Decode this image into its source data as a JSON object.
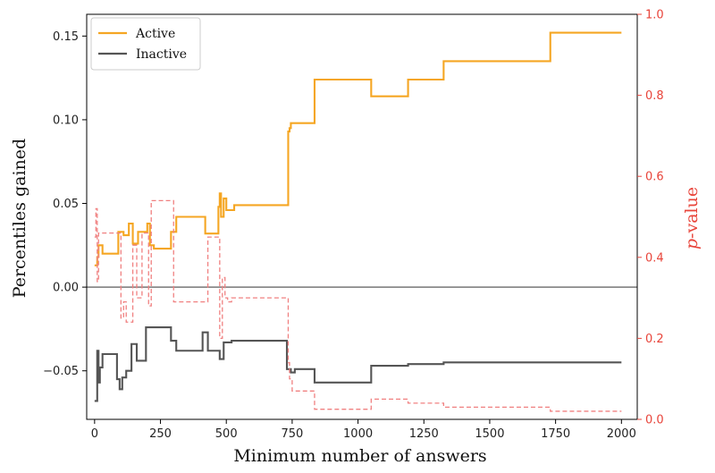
{
  "chart_data": {
    "type": "line",
    "xlabel": "Minimum number of answers",
    "ylabel": "Percentiles gained",
    "ylabel_right_italic": "p",
    "ylabel_right_rest": "-value",
    "xlim": [
      -30,
      2060
    ],
    "ylim": [
      -0.079,
      0.163
    ],
    "ylim_right": [
      0,
      1
    ],
    "xticks": [
      0,
      250,
      500,
      750,
      1000,
      1250,
      1500,
      1750,
      2000
    ],
    "xtick_labels": [
      "0",
      "250",
      "500",
      "750",
      "1000",
      "1250",
      "1500",
      "1750",
      "2000"
    ],
    "yticks": [
      -0.05,
      0.0,
      0.05,
      0.1,
      0.15
    ],
    "ytick_labels": [
      "−0.05",
      "0.00",
      "0.05",
      "0.10",
      "0.15"
    ],
    "yticks_right": [
      0.0,
      0.2,
      0.4,
      0.6,
      0.8,
      1.0
    ],
    "ytick_labels_right": [
      "0.0",
      "0.2",
      "0.4",
      "0.6",
      "0.8",
      "1.0"
    ],
    "legend_position": "upper-left",
    "zero_line": true,
    "grid": false,
    "series": [
      {
        "name": "Active",
        "color": "#f5a623",
        "axis": "left",
        "style": "step",
        "x": [
          0,
          10,
          15,
          30,
          90,
          110,
          130,
          145,
          165,
          200,
          210,
          225,
          290,
          310,
          420,
          470,
          475,
          480,
          490,
          500,
          530,
          735,
          740,
          745,
          755,
          835,
          1050,
          1190,
          1325,
          1730,
          2000
        ],
        "y": [
          0.013,
          0.018,
          0.025,
          0.02,
          0.033,
          0.031,
          0.038,
          0.026,
          0.033,
          0.038,
          0.025,
          0.023,
          0.033,
          0.042,
          0.032,
          0.048,
          0.056,
          0.042,
          0.053,
          0.046,
          0.049,
          0.093,
          0.095,
          0.098,
          0.098,
          0.124,
          0.114,
          0.124,
          0.135,
          0.152,
          0.152
        ]
      },
      {
        "name": "Inactive",
        "color": "#555555",
        "axis": "left",
        "style": "step",
        "x": [
          0,
          10,
          15,
          20,
          30,
          85,
          95,
          105,
          120,
          140,
          160,
          195,
          210,
          265,
          290,
          310,
          410,
          430,
          475,
          490,
          520,
          730,
          745,
          760,
          835,
          1050,
          1190,
          1325,
          1730,
          2000
        ],
        "y": [
          -0.068,
          -0.038,
          -0.057,
          -0.048,
          -0.04,
          -0.055,
          -0.061,
          -0.054,
          -0.05,
          -0.034,
          -0.044,
          -0.024,
          -0.024,
          -0.024,
          -0.032,
          -0.038,
          -0.027,
          -0.038,
          -0.043,
          -0.033,
          -0.032,
          -0.049,
          -0.051,
          -0.049,
          -0.057,
          -0.047,
          -0.046,
          -0.045,
          -0.045,
          -0.045
        ]
      },
      {
        "name": "",
        "color": "#f08080",
        "axis": "right",
        "style": "step-dashed",
        "x": [
          0,
          5,
          10,
          15,
          30,
          100,
          110,
          120,
          145,
          160,
          180,
          205,
          215,
          280,
          300,
          410,
          430,
          475,
          485,
          495,
          505,
          520,
          730,
          735,
          740,
          750,
          760,
          835,
          1050,
          1190,
          1325,
          1730,
          2000
        ],
        "y": [
          0.45,
          0.52,
          0.34,
          0.46,
          0.46,
          0.25,
          0.29,
          0.24,
          0.43,
          0.3,
          0.46,
          0.28,
          0.54,
          0.54,
          0.29,
          0.29,
          0.45,
          0.2,
          0.35,
          0.3,
          0.29,
          0.3,
          0.3,
          0.14,
          0.1,
          0.07,
          0.07,
          0.025,
          0.05,
          0.04,
          0.03,
          0.02,
          0.02
        ]
      }
    ]
  }
}
